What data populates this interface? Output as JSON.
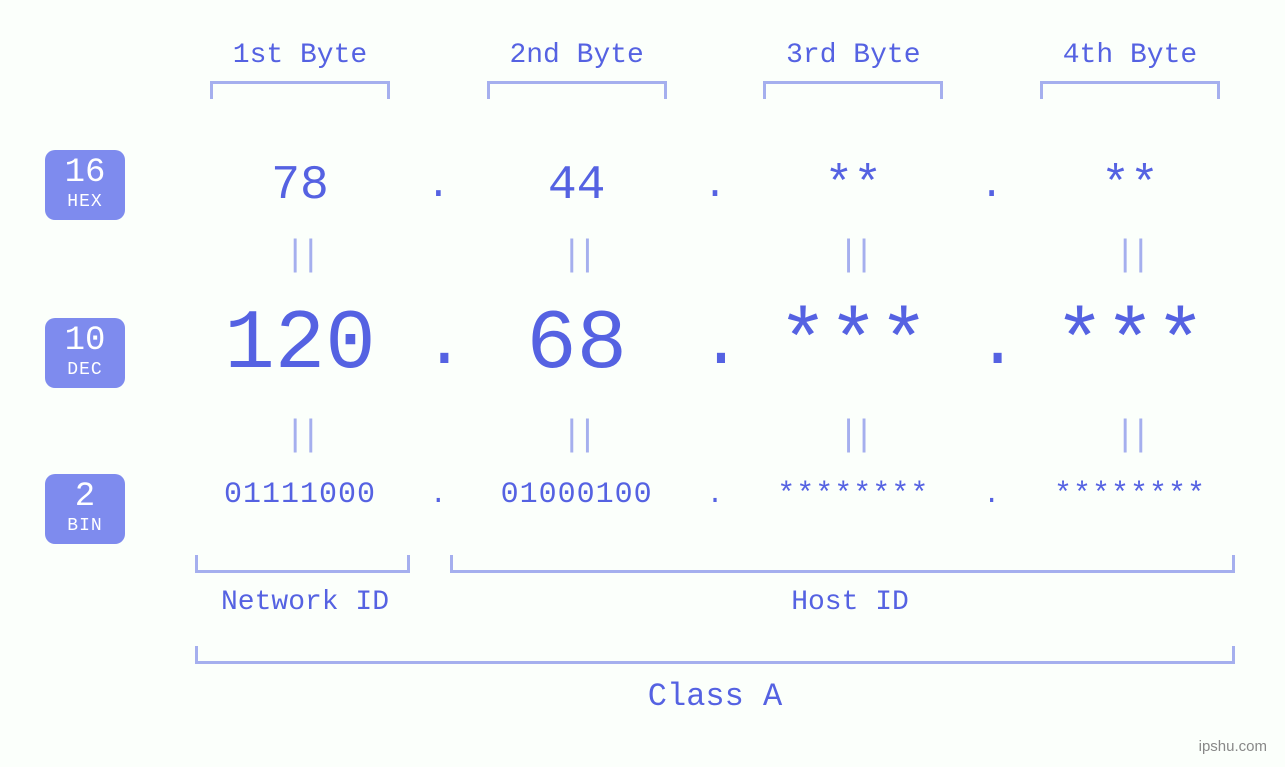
{
  "type": "infographic",
  "colors": {
    "background": "#fbfffb",
    "primary_text": "#5562e2",
    "light_accent": "#a5afee",
    "badge_bg": "#7e8bee",
    "badge_text": "#ffffff",
    "watermark": "#888888"
  },
  "typography": {
    "font_family": "monospace",
    "byte_label_fontsize": 28,
    "hex_fontsize": 48,
    "dec_fontsize": 84,
    "bin_fontsize": 30,
    "equals_fontsize": 36,
    "badge_num_fontsize": 34,
    "badge_label_fontsize": 18,
    "class_fontsize": 32
  },
  "byte_headers": [
    "1st Byte",
    "2nd Byte",
    "3rd Byte",
    "4th Byte"
  ],
  "bases": [
    {
      "num": "16",
      "label": "HEX"
    },
    {
      "num": "10",
      "label": "DEC"
    },
    {
      "num": "2",
      "label": "BIN"
    }
  ],
  "hex": {
    "b1": "78",
    "b2": "44",
    "b3": "**",
    "b4": "**"
  },
  "dec": {
    "b1": "120",
    "b2": "68",
    "b3": "***",
    "b4": "***"
  },
  "bin": {
    "b1": "01111000",
    "b2": "01000100",
    "b3": "********",
    "b4": "********"
  },
  "separator": ".",
  "equals": "||",
  "bottom": {
    "network_label": "Network ID",
    "host_label": "Host ID",
    "class_label": "Class A"
  },
  "watermark": "ipshu.com"
}
